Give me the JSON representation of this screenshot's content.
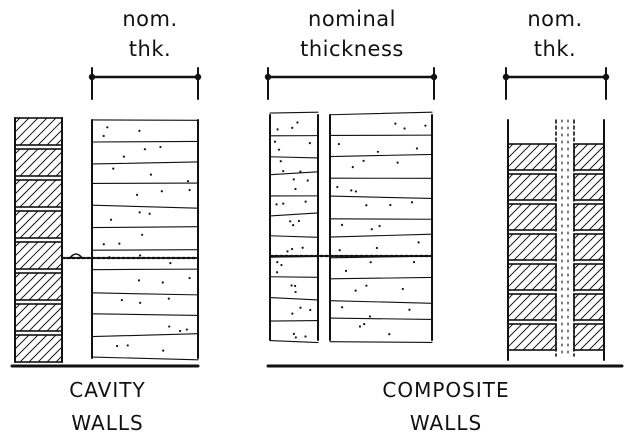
{
  "labels": {
    "cavity_thickness": [
      "nom.",
      "thk."
    ],
    "composite_thickness": [
      "nominal",
      "thickness"
    ],
    "brick_thickness": [
      "nom.",
      "thk."
    ]
  },
  "captions": {
    "cavity": [
      "CAVITY",
      "WALLS"
    ],
    "composite": [
      "COMPOSITE",
      "WALLS"
    ]
  },
  "colors": {
    "ink": "#111111",
    "paper": "#ffffff"
  }
}
